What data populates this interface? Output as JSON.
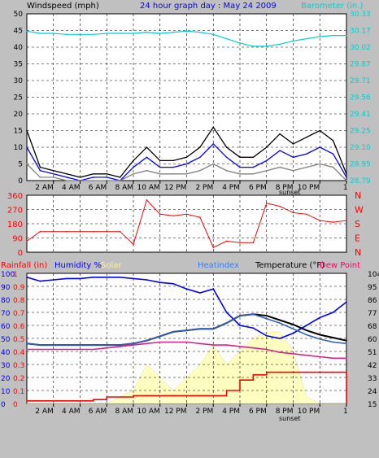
{
  "colors": {
    "bg": "#c0c0c0",
    "plot": "#ffffff",
    "grid": "#000000",
    "wind": "#0000ff",
    "gust": "#000000",
    "avgwind": "#808080",
    "baro": "#00d0d0",
    "dir": "#ff0000",
    "rain": "#ff0000",
    "humidity": "#0000ff",
    "solar": "#ffffc0",
    "heatindex": "#3060c0",
    "temp": "#000000",
    "dew": "#e0208a",
    "lefttick": "#000000",
    "righttick": "#000000",
    "title": "#0000ff"
  },
  "header": {
    "wind_label": "Windspeed (mph)",
    "title": "24 hour graph day : May 24 2009",
    "baro_label": "Barometer (in.)"
  },
  "bottom_labels": {
    "rain": "Rainfall (in)",
    "humidity": "Humidity %",
    "solar": "Solar",
    "heatindex": "Heatindex",
    "temperature": "Temperature (°F)",
    "dewpoint": "Dew Point"
  },
  "time_labels": [
    "2 AM",
    "4 AM",
    "6 AM",
    "8 AM",
    "10 AM",
    "12 PM",
    "2 PM",
    "4 PM",
    "6 PM",
    "8 PM",
    "10 PM",
    "1"
  ],
  "sunset_label": "sunset",
  "chart_data": [
    {
      "type": "line",
      "name": "wind",
      "ylabel": "Windspeed (mph)",
      "y2label": "Barometer (in.)",
      "ylim": [
        0,
        50
      ],
      "y2lim": [
        28.79,
        30.33
      ],
      "yticks": [
        "50",
        "45",
        "40",
        "35",
        "30",
        "25",
        "20",
        "15",
        "10",
        "5",
        "0"
      ],
      "y2ticks": [
        "30.33",
        "30.17",
        "30.02",
        "29.87",
        "29.71",
        "29.56",
        "29.41",
        "29.25",
        "29.10",
        "28.95",
        "28.79"
      ],
      "x": [
        0,
        1,
        2,
        3,
        4,
        5,
        6,
        7,
        8,
        9,
        10,
        11,
        12,
        13,
        14,
        15,
        16,
        17,
        18,
        19,
        20,
        21,
        22,
        23,
        24
      ],
      "series": [
        {
          "name": "Barometer (in.)",
          "values": [
            30.17,
            30.15,
            30.15,
            30.14,
            30.14,
            30.14,
            30.15,
            30.15,
            30.15,
            30.16,
            30.15,
            30.16,
            30.17,
            30.16,
            30.14,
            30.1,
            30.06,
            30.03,
            30.03,
            30.05,
            30.08,
            30.1,
            30.12,
            30.13,
            30.13
          ]
        },
        {
          "name": "gust",
          "values": [
            15,
            4,
            3,
            2,
            1,
            2,
            2,
            1,
            6,
            10,
            6,
            6,
            7,
            10,
            16,
            10,
            7,
            7,
            10,
            14,
            11,
            13,
            15,
            12,
            2
          ]
        },
        {
          "name": "wind",
          "values": [
            10,
            3,
            2,
            1,
            0,
            1,
            1,
            0,
            4,
            7,
            4,
            4,
            5,
            7,
            11,
            7,
            4,
            4,
            6,
            9,
            7,
            8,
            10,
            8,
            1
          ]
        },
        {
          "name": "avg",
          "values": [
            5,
            1,
            1,
            0,
            0,
            0,
            0,
            0,
            2,
            3,
            2,
            2,
            2,
            3,
            5,
            3,
            2,
            2,
            3,
            4,
            3,
            4,
            5,
            4,
            0
          ]
        }
      ]
    },
    {
      "type": "line",
      "name": "direction",
      "ylim": [
        0,
        360
      ],
      "yticks": [
        "360",
        "270",
        "180",
        "90",
        "0"
      ],
      "y2ticks": [
        "N",
        "W",
        "S",
        "E",
        "N"
      ],
      "x": [
        0,
        1,
        2,
        3,
        4,
        5,
        6,
        7,
        8,
        9,
        10,
        11,
        12,
        13,
        14,
        15,
        16,
        17,
        18,
        19,
        20,
        21,
        22,
        23,
        24
      ],
      "series": [
        {
          "name": "direction",
          "values": [
            70,
            130,
            130,
            130,
            130,
            130,
            130,
            130,
            50,
            330,
            240,
            230,
            240,
            220,
            30,
            70,
            60,
            60,
            310,
            290,
            250,
            240,
            200,
            190,
            200
          ]
        }
      ]
    },
    {
      "type": "line",
      "name": "temperature",
      "ylabel_left_rain": "Rainfall (in)",
      "ylabel_left_hum": "Humidity %",
      "y2label": "Temperature (°F)",
      "rain_ticks": [
        "1",
        "0.9",
        "0.8",
        "0.7",
        "0.6",
        "0.5",
        "0.4",
        "0.3",
        "0.2",
        "0.1",
        "0"
      ],
      "hum_ticks": [
        "100",
        "90",
        "80",
        "70",
        "60",
        "50",
        "40",
        "30",
        "20",
        "10",
        "0"
      ],
      "temp_ticks": [
        "104",
        "95",
        "86",
        "77",
        "68",
        "60",
        "51",
        "42",
        "33",
        "24",
        "15"
      ],
      "hum_lim": [
        0,
        100
      ],
      "temp_lim": [
        15,
        104
      ],
      "x": [
        0,
        1,
        2,
        3,
        4,
        5,
        6,
        7,
        8,
        9,
        10,
        11,
        12,
        13,
        14,
        15,
        16,
        17,
        18,
        19,
        20,
        21,
        22,
        23,
        24
      ],
      "series": [
        {
          "name": "Humidity %",
          "values": [
            97,
            94,
            95,
            96,
            96,
            97,
            97,
            97,
            96,
            95,
            93,
            92,
            88,
            85,
            88,
            70,
            60,
            58,
            52,
            50,
            54,
            60,
            66,
            70,
            78
          ]
        },
        {
          "name": "Solar",
          "values": [
            0,
            0,
            0,
            0,
            0,
            0,
            0,
            5,
            10,
            30,
            20,
            10,
            20,
            30,
            45,
            30,
            40,
            50,
            55,
            55,
            40,
            5,
            0,
            0,
            0
          ]
        },
        {
          "name": "Temperature (°F)",
          "values": [
            56,
            55,
            55,
            55,
            55,
            55,
            55,
            55,
            56,
            58,
            61,
            64,
            65,
            66,
            66,
            70,
            75,
            76,
            75,
            72,
            69,
            65,
            62,
            60,
            58
          ]
        },
        {
          "name": "Heatindex",
          "values": [
            56,
            55,
            55,
            55,
            55,
            55,
            55,
            55,
            56,
            58,
            61,
            64,
            65,
            66,
            66,
            70,
            75,
            76,
            73,
            70,
            66,
            62,
            59,
            57,
            56
          ]
        },
        {
          "name": "Dew Point",
          "values": [
            52,
            52,
            52,
            52,
            52,
            52,
            53,
            54,
            55,
            56,
            57,
            57,
            57,
            56,
            55,
            55,
            54,
            53,
            52,
            50,
            49,
            48,
            47,
            46,
            46
          ]
        },
        {
          "name": "Rainfall (in)",
          "values": [
            0.02,
            0.02,
            0.02,
            0.02,
            0.02,
            0.03,
            0.05,
            0.05,
            0.06,
            0.06,
            0.06,
            0.06,
            0.06,
            0.06,
            0.06,
            0.1,
            0.18,
            0.22,
            0.24,
            0.24,
            0.24,
            0.24,
            0.24,
            0.24,
            0.24
          ]
        }
      ]
    }
  ]
}
